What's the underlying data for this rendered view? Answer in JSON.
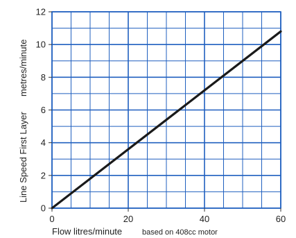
{
  "chart_data": {
    "type": "line",
    "title": "",
    "xlabel": "Flow litres/minute",
    "xlabel_note": "based on 408cc motor",
    "ylabel_part1": "Line Speed  First Layer",
    "ylabel_part2": "metres/minute",
    "xlim": [
      0,
      60
    ],
    "ylim": [
      0,
      12
    ],
    "x_ticks": [
      0,
      20,
      40,
      60
    ],
    "y_ticks": [
      0,
      2,
      4,
      6,
      8,
      10,
      12
    ],
    "x_tick_labels": [
      "0",
      "20",
      "40",
      "60"
    ],
    "y_tick_labels": [
      "0",
      "2",
      "4",
      "6",
      "8",
      "10",
      "12"
    ],
    "grid": true,
    "grid_x_step": 5,
    "grid_y_step": 1,
    "grid_color": "#1f5fbf",
    "line_color": "#1a1a1a",
    "series": [
      {
        "x": [
          0,
          60
        ],
        "y": [
          0,
          10.8
        ]
      }
    ]
  }
}
